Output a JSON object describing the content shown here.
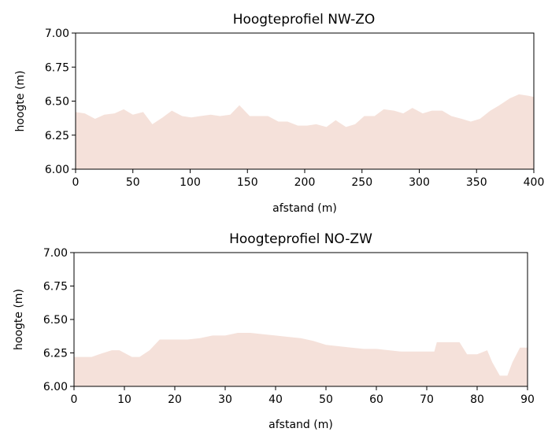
{
  "colors": {
    "area_fill": "#f5e1da",
    "axes": "#000000",
    "background": "#ffffff"
  },
  "chart_data": [
    {
      "type": "area",
      "title": "Hoogteprofiel NW-ZO",
      "xlabel": "afstand (m)",
      "ylabel": "hoogte (m)",
      "xlim": [
        0,
        400
      ],
      "ylim": [
        6.0,
        7.0
      ],
      "xticks": [
        "0",
        "50",
        "100",
        "150",
        "200",
        "250",
        "300",
        "350",
        "400"
      ],
      "yticks": [
        "6.00",
        "6.25",
        "6.50",
        "6.75",
        "7.00"
      ],
      "grid": false,
      "legend": null,
      "x": [
        0,
        8,
        17,
        25,
        34,
        42,
        50,
        59,
        67,
        76,
        84,
        93,
        101,
        109,
        118,
        126,
        135,
        143,
        152,
        160,
        168,
        177,
        185,
        194,
        202,
        210,
        219,
        227,
        236,
        244,
        252,
        261,
        269,
        278,
        286,
        294,
        303,
        311,
        320,
        328,
        337,
        345,
        353,
        362,
        370,
        379,
        387,
        395,
        400
      ],
      "y": [
        6.42,
        6.41,
        6.37,
        6.4,
        6.41,
        6.44,
        6.4,
        6.42,
        6.33,
        6.38,
        6.43,
        6.39,
        6.38,
        6.39,
        6.4,
        6.39,
        6.4,
        6.47,
        6.39,
        6.39,
        6.39,
        6.35,
        6.35,
        6.32,
        6.32,
        6.33,
        6.31,
        6.36,
        6.31,
        6.33,
        6.39,
        6.39,
        6.44,
        6.43,
        6.41,
        6.45,
        6.41,
        6.43,
        6.43,
        6.39,
        6.37,
        6.35,
        6.37,
        6.43,
        6.47,
        6.52,
        6.55,
        6.54,
        6.53
      ]
    },
    {
      "type": "area",
      "title": "Hoogteprofiel NO-ZW",
      "xlabel": "afstand (m)",
      "ylabel": "hoogte (m)",
      "xlim": [
        0,
        90
      ],
      "ylim": [
        6.0,
        7.0
      ],
      "xticks": [
        "0",
        "10",
        "20",
        "30",
        "40",
        "50",
        "60",
        "70",
        "80",
        "90"
      ],
      "yticks": [
        "6.00",
        "6.25",
        "6.50",
        "6.75",
        "7.00"
      ],
      "grid": false,
      "legend": null,
      "x": [
        0,
        3.5,
        5,
        7.5,
        9,
        10,
        11.5,
        13,
        15,
        17,
        20,
        22.5,
        25,
        27.5,
        30,
        32.5,
        35,
        37.5,
        40,
        42.5,
        45,
        47.5,
        50,
        52.5,
        55,
        57.5,
        60,
        62.5,
        65,
        67.5,
        70,
        71.5,
        72,
        75,
        76.5,
        78,
        80,
        82,
        83,
        84.5,
        86,
        87,
        88.5,
        90
      ],
      "y": [
        6.22,
        6.22,
        6.24,
        6.27,
        6.27,
        6.25,
        6.22,
        6.22,
        6.27,
        6.35,
        6.35,
        6.35,
        6.36,
        6.38,
        6.38,
        6.4,
        6.4,
        6.39,
        6.38,
        6.37,
        6.36,
        6.34,
        6.31,
        6.3,
        6.29,
        6.28,
        6.28,
        6.27,
        6.26,
        6.26,
        6.26,
        6.26,
        6.33,
        6.33,
        6.33,
        6.24,
        6.24,
        6.27,
        6.18,
        6.08,
        6.08,
        6.18,
        6.29,
        6.29
      ]
    }
  ]
}
